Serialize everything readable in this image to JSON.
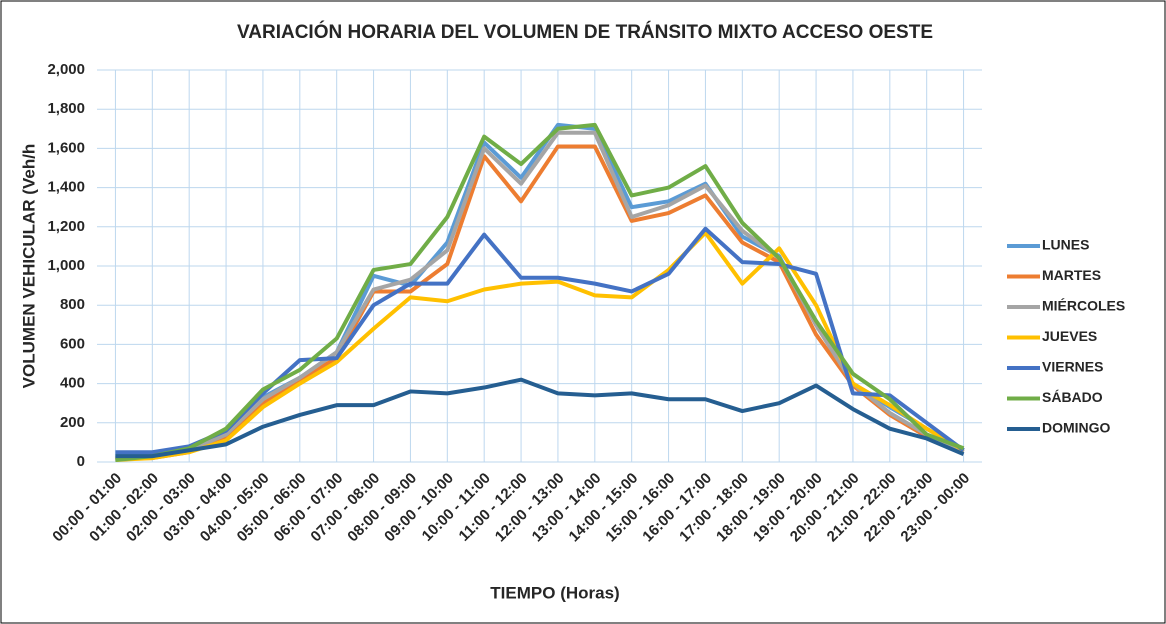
{
  "chart_data": {
    "type": "line",
    "title": "VARIACIÓN HORARIA DEL VOLUMEN DE TRÁNSITO MIXTO ACCESO OESTE",
    "x_label": "TIEMPO (Horas)",
    "y_label": "VOLUMEN VEHICULAR (Veh/h",
    "categories": [
      "00:00 - 01:00",
      "01:00 - 02:00",
      "02:00 - 03:00",
      "03:00 - 04:00",
      "04:00 - 05:00",
      "05:00 - 06:00",
      "06:00 - 07:00",
      "07:00 - 08:00",
      "08:00 - 09:00",
      "09:00 - 10:00",
      "10:00 - 11:00",
      "11:00 - 12:00",
      "12:00 - 13:00",
      "13:00 - 14:00",
      "14:00 - 15:00",
      "15:00 - 16:00",
      "16:00 - 17:00",
      "17:00 - 18:00",
      "18:00 - 19:00",
      "19:00 - 20:00",
      "20:00 - 21:00",
      "21:00 - 22:00",
      "22:00 - 23:00",
      "23:00 - 00:00"
    ],
    "series": [
      {
        "name": "LUNES",
        "color": "#5b9bd5",
        "values": [
          30,
          30,
          60,
          150,
          330,
          430,
          560,
          950,
          900,
          1120,
          1630,
          1450,
          1720,
          1700,
          1300,
          1330,
          1420,
          1150,
          1050,
          700,
          400,
          280,
          170,
          60
        ]
      },
      {
        "name": "MARTES",
        "color": "#ed7d31",
        "values": [
          20,
          20,
          50,
          130,
          300,
          420,
          530,
          870,
          870,
          1010,
          1560,
          1330,
          1610,
          1610,
          1230,
          1270,
          1360,
          1120,
          1020,
          650,
          390,
          240,
          130,
          50
        ]
      },
      {
        "name": "MIÉRCOLES",
        "color": "#a5a5a5",
        "values": [
          20,
          30,
          60,
          140,
          320,
          430,
          560,
          880,
          930,
          1080,
          1600,
          1420,
          1680,
          1680,
          1250,
          1310,
          1410,
          1180,
          1040,
          700,
          400,
          250,
          140,
          50
        ]
      },
      {
        "name": "JUEVES",
        "color": "#ffc000",
        "values": [
          10,
          20,
          50,
          110,
          280,
          400,
          510,
          680,
          840,
          820,
          880,
          910,
          920,
          850,
          840,
          980,
          1170,
          910,
          1090,
          800,
          400,
          290,
          170,
          60
        ]
      },
      {
        "name": "VIERNES",
        "color": "#4472c4",
        "values": [
          50,
          50,
          80,
          160,
          350,
          520,
          530,
          800,
          910,
          910,
          1160,
          940,
          940,
          910,
          870,
          960,
          1190,
          1020,
          1010,
          960,
          350,
          340,
          200,
          60
        ]
      },
      {
        "name": "SÁBADO",
        "color": "#70ad47",
        "values": [
          10,
          30,
          70,
          170,
          370,
          470,
          630,
          980,
          1010,
          1250,
          1660,
          1520,
          1700,
          1720,
          1360,
          1400,
          1510,
          1220,
          1040,
          720,
          450,
          320,
          140,
          70
        ]
      },
      {
        "name": "DOMINGO",
        "color": "#255e91",
        "values": [
          30,
          30,
          60,
          90,
          180,
          240,
          290,
          290,
          360,
          350,
          380,
          420,
          350,
          340,
          350,
          320,
          320,
          260,
          300,
          390,
          270,
          170,
          120,
          40
        ]
      }
    ],
    "ylim": [
      0,
      2000
    ],
    "yticks": [
      0,
      200,
      400,
      600,
      800,
      {
        "value": 1000,
        "label": "1,000"
      },
      {
        "value": 1200,
        "label": "1,200"
      },
      {
        "value": 1400,
        "label": "1,400"
      },
      {
        "value": 1600,
        "label": "1,600"
      },
      {
        "value": 1800,
        "label": "1,800"
      },
      {
        "value": 2000,
        "label": "2,000"
      }
    ],
    "grid": true,
    "legend": "right"
  }
}
